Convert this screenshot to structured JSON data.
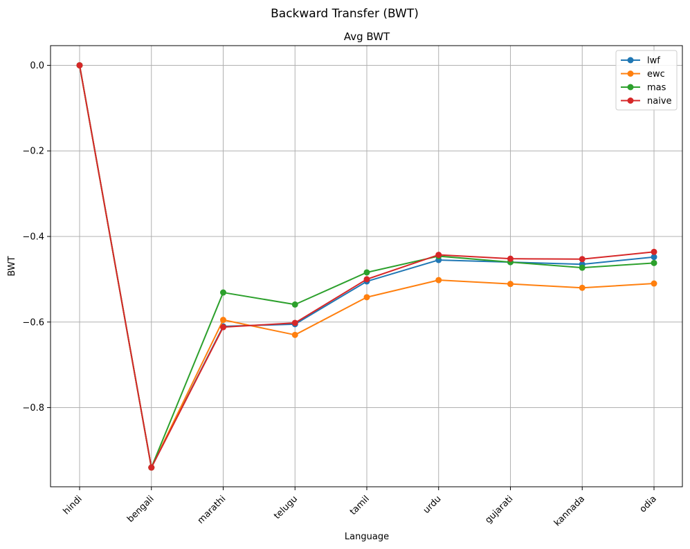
{
  "figure": {
    "suptitle": "Backward Transfer (BWT)"
  },
  "chart_data": {
    "type": "line",
    "title": "Avg BWT",
    "xlabel": "Language",
    "ylabel": "BWT",
    "categories": [
      "hindi",
      "bengali",
      "marathi",
      "telugu",
      "tamil",
      "urdu",
      "gujarati",
      "kannada",
      "odia"
    ],
    "ylim": [
      -0.985,
      0.046
    ],
    "yticks": [
      0.0,
      -0.2,
      -0.4,
      -0.6,
      -0.8
    ],
    "ytick_labels": [
      "0.0",
      "−0.2",
      "−0.4",
      "−0.6",
      "−0.8"
    ],
    "grid": true,
    "legend_position": "top-right",
    "series": [
      {
        "name": "lwf",
        "color": "#1f77b4",
        "values": [
          0.0,
          -0.94,
          -0.61,
          -0.605,
          -0.505,
          -0.455,
          -0.46,
          -0.465,
          -0.448
        ]
      },
      {
        "name": "ewc",
        "color": "#ff7f0e",
        "values": [
          0.0,
          -0.94,
          -0.595,
          -0.63,
          -0.542,
          -0.502,
          -0.511,
          -0.52,
          -0.51
        ]
      },
      {
        "name": "mas",
        "color": "#2ca02c",
        "values": [
          0.0,
          -0.94,
          -0.531,
          -0.559,
          -0.484,
          -0.446,
          -0.46,
          -0.473,
          -0.462
        ]
      },
      {
        "name": "naive",
        "color": "#d62728",
        "values": [
          0.0,
          -0.94,
          -0.612,
          -0.602,
          -0.5,
          -0.443,
          -0.452,
          -0.453,
          -0.436
        ]
      }
    ]
  }
}
